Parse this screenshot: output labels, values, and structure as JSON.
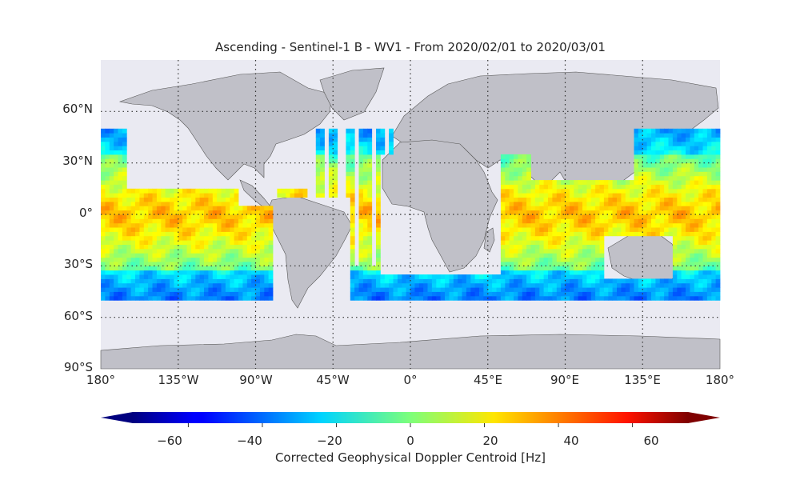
{
  "map": {
    "title": "Ascending - Sentinel-1 B - WV1 - From 2020/02/01 to 2020/03/01",
    "projection": "equirectangular",
    "lon_range": [
      -180,
      180
    ],
    "lat_range": [
      -90,
      90
    ],
    "gridlines": "dotted",
    "colors": {
      "ocean_background": "#eaeaf2",
      "land": "#c0c0c8",
      "coastline": "#555555"
    },
    "lat_ticks": [
      {
        "value": 60,
        "label": "60°N"
      },
      {
        "value": 30,
        "label": "30°N"
      },
      {
        "value": 0,
        "label": "0°"
      },
      {
        "value": -30,
        "label": "30°S"
      },
      {
        "value": -60,
        "label": "60°S"
      },
      {
        "value": -90,
        "label": "90°S"
      }
    ],
    "lon_ticks": [
      {
        "value": -180,
        "label": "180°"
      },
      {
        "value": -135,
        "label": "135°W"
      },
      {
        "value": -90,
        "label": "90°W"
      },
      {
        "value": -45,
        "label": "45°W"
      },
      {
        "value": 0,
        "label": "0°"
      },
      {
        "value": 45,
        "label": "45°E"
      },
      {
        "value": 90,
        "label": "90°E"
      },
      {
        "value": 135,
        "label": "135°E"
      },
      {
        "value": 180,
        "label": "180°"
      }
    ],
    "data_coverage": {
      "lat": [
        -50,
        50
      ]
    }
  },
  "colorbar": {
    "label": "Corrected Geophysical Doppler Centroid [Hz]",
    "colormap": "jet",
    "range": [
      -75,
      75
    ],
    "extend": "both",
    "ticks": [
      -60,
      -40,
      -20,
      0,
      20,
      40,
      60
    ],
    "tick_labels": [
      "−60",
      "−40",
      "−20",
      "0",
      "20",
      "40",
      "60"
    ]
  }
}
